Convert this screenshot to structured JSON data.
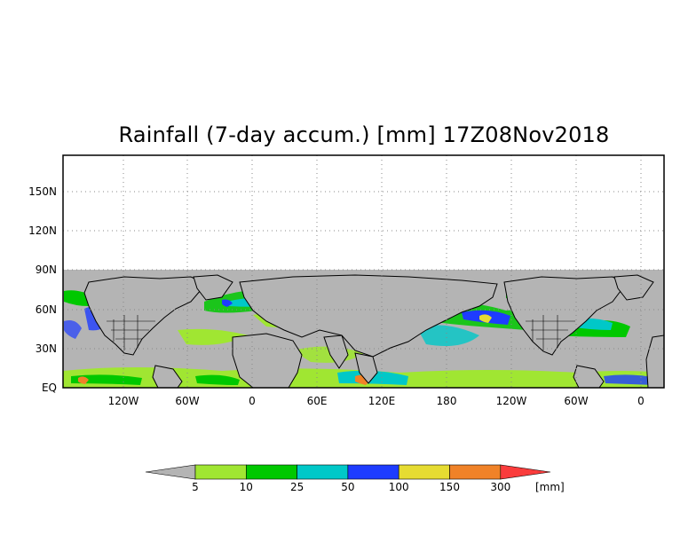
{
  "title": "Rainfall (7-day accum.) [mm] 17Z08Nov2018",
  "map": {
    "lat_labels": [
      "150N",
      "120N",
      "90N",
      "60N",
      "30N",
      "EQ"
    ],
    "lon_labels": [
      "120W",
      "60W",
      "0",
      "60E",
      "120E",
      "180",
      "120W",
      "60W",
      "0"
    ],
    "no_data_color": "#b4b4b4",
    "continent_outline_color": "#000000",
    "grid_style": "dotted"
  },
  "colorbar": {
    "unit": "[mm]",
    "thresholds": [
      "5",
      "10",
      "25",
      "50",
      "100",
      "150",
      "300"
    ],
    "colors": [
      "#b4b4b4",
      "#a0e632",
      "#00c800",
      "#00c8c8",
      "#1e3cff",
      "#e6dc32",
      "#f08228",
      "#fa3c3c"
    ]
  },
  "legend": {
    "tick_labels": [
      "5",
      "10",
      "25",
      "50",
      "100",
      "150",
      "300"
    ]
  }
}
